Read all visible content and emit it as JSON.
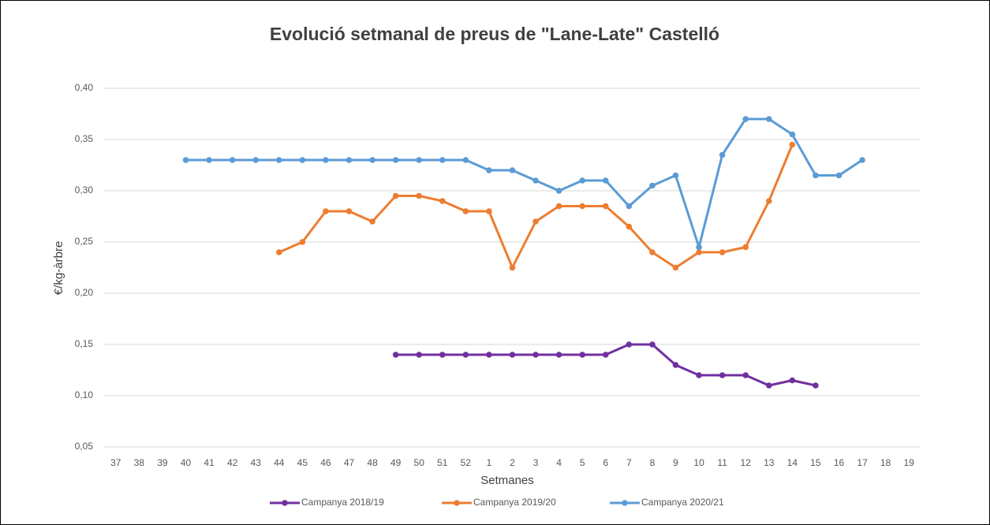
{
  "chart_data": {
    "type": "line",
    "title": "Evolució setmanal de preus de \"Lane-Late\" Castelló",
    "x_label": "Setmanes",
    "y_label": "€/kg-àrbre",
    "categories": [
      "37",
      "38",
      "39",
      "40",
      "41",
      "42",
      "43",
      "44",
      "45",
      "46",
      "47",
      "48",
      "49",
      "50",
      "51",
      "52",
      "1",
      "2",
      "3",
      "4",
      "5",
      "6",
      "7",
      "8",
      "9",
      "10",
      "11",
      "12",
      "13",
      "14",
      "15",
      "16",
      "17",
      "18",
      "19"
    ],
    "series": [
      {
        "name": "Campanya 2018/19",
        "color": "#7030a0",
        "values": [
          null,
          null,
          null,
          null,
          null,
          null,
          null,
          null,
          null,
          null,
          null,
          null,
          0.14,
          0.14,
          0.14,
          0.14,
          0.14,
          0.14,
          0.14,
          0.14,
          0.14,
          0.14,
          0.15,
          0.15,
          0.13,
          0.12,
          0.12,
          0.12,
          0.11,
          0.115,
          0.11,
          null,
          null,
          null,
          null
        ]
      },
      {
        "name": "Campanya 2019/20",
        "color": "#ed7d31",
        "values": [
          null,
          null,
          null,
          null,
          null,
          null,
          null,
          0.24,
          0.25,
          0.28,
          0.28,
          0.27,
          0.295,
          0.295,
          0.29,
          0.28,
          0.28,
          0.225,
          0.27,
          0.285,
          0.285,
          0.285,
          0.265,
          0.24,
          0.225,
          0.24,
          0.24,
          0.245,
          0.29,
          0.345,
          null,
          null,
          null,
          null,
          null
        ]
      },
      {
        "name": "Campanya 2020/21",
        "color": "#5b9bd5",
        "values": [
          null,
          null,
          null,
          0.33,
          0.33,
          0.33,
          0.33,
          0.33,
          0.33,
          0.33,
          0.33,
          0.33,
          0.33,
          0.33,
          0.33,
          0.33,
          0.32,
          0.32,
          0.31,
          0.3,
          0.31,
          0.31,
          0.285,
          0.305,
          0.315,
          0.245,
          0.335,
          0.37,
          0.37,
          0.355,
          0.315,
          0.315,
          0.33,
          null,
          null
        ]
      }
    ],
    "ylim": [
      0.05,
      0.4
    ],
    "yticks": [
      {
        "value": 0.05,
        "label": "0,05"
      },
      {
        "value": 0.1,
        "label": "0,10"
      },
      {
        "value": 0.15,
        "label": "0,15"
      },
      {
        "value": 0.2,
        "label": "0,20"
      },
      {
        "value": 0.25,
        "label": "0,25"
      },
      {
        "value": 0.3,
        "label": "0,30"
      },
      {
        "value": 0.35,
        "label": "0,35"
      },
      {
        "value": 0.4,
        "label": "0,40"
      }
    ],
    "grid": true,
    "legend": "bottom"
  }
}
